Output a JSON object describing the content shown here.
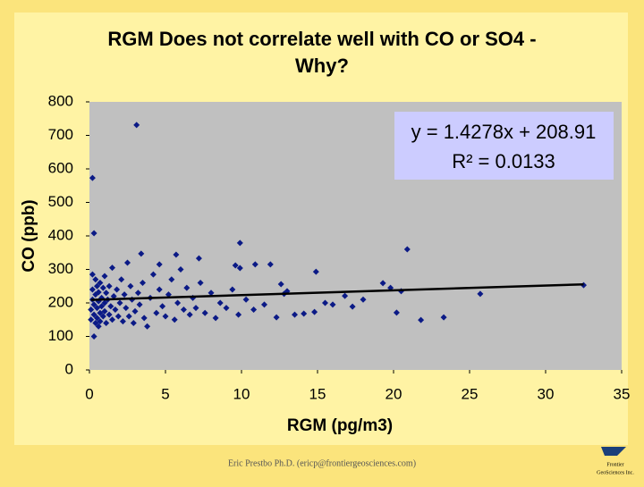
{
  "chart_data": {
    "type": "scatter",
    "title_lines": [
      "RGM Does not correlate well with CO or SO4 -",
      "Why?"
    ],
    "x_label": "RGM (pg/m3)",
    "y_label": "CO (ppb)",
    "color": "#0b1a86",
    "xlim": [
      0,
      35
    ],
    "xticks": [
      0,
      5,
      10,
      15,
      20,
      25,
      30,
      35
    ],
    "ylim": [
      0,
      800
    ],
    "yticks": [
      0,
      100,
      200,
      300,
      400,
      500,
      600,
      700,
      800
    ],
    "trendline": {
      "slope": 1.4278,
      "intercept": 208.91,
      "equation": "y = 1.4278x + 208.91",
      "r_squared": "R² = 0.0133"
    },
    "x": [
      0.2,
      0.3,
      3.1,
      9.9,
      20.9,
      32.5,
      25.7,
      23.3,
      21.8,
      20.2,
      19.3,
      20.5,
      14.9,
      12.6,
      11.9,
      10.9,
      9.6,
      9.9,
      7.2,
      5.7,
      3.4,
      4.6,
      12.8,
      12.3,
      14.1,
      14.8,
      15.5,
      16.0,
      16.8,
      17.3,
      0.1,
      0.1,
      0.2,
      0.2,
      0.2,
      0.3,
      0.3,
      0.3,
      0.4,
      0.4,
      0.4,
      0.5,
      0.5,
      0.5,
      0.6,
      0.6,
      0.6,
      0.7,
      0.7,
      0.7,
      0.8,
      0.8,
      0.9,
      0.9,
      1.0,
      1.0,
      1.0,
      1.1,
      1.1,
      1.2,
      1.3,
      1.3,
      1.4,
      1.5,
      1.5,
      1.6,
      1.7,
      1.8,
      1.9,
      2.0,
      2.1,
      2.2,
      2.3,
      2.4,
      2.5,
      2.6,
      2.7,
      2.8,
      2.9,
      3.0,
      3.2,
      3.3,
      3.5,
      3.6,
      3.8,
      4.0,
      4.2,
      4.4,
      4.6,
      4.8,
      5.0,
      5.2,
      5.4,
      5.6,
      5.8,
      6.0,
      6.2,
      6.4,
      6.6,
      6.8,
      7.0,
      7.3,
      7.6,
      8.0,
      8.3,
      8.6,
      9.0,
      9.4,
      9.8,
      10.3,
      10.8,
      11.5,
      13.0,
      13.5,
      18.0,
      19.8
    ],
    "y": [
      573,
      408,
      731,
      379,
      360,
      253,
      227,
      157,
      149,
      171,
      259,
      235,
      293,
      256,
      315,
      315,
      312,
      304,
      333,
      344,
      347,
      315,
      227,
      157,
      168,
      173,
      200,
      195,
      221,
      189,
      150,
      180,
      210,
      240,
      285,
      165,
      195,
      100,
      140,
      225,
      270,
      155,
      185,
      250,
      130,
      205,
      232,
      170,
      260,
      145,
      190,
      215,
      160,
      245,
      175,
      200,
      280,
      140,
      230,
      210,
      165,
      250,
      190,
      305,
      150,
      220,
      180,
      240,
      160,
      200,
      270,
      145,
      225,
      185,
      320,
      160,
      250,
      210,
      140,
      175,
      230,
      195,
      260,
      155,
      130,
      215,
      285,
      170,
      240,
      190,
      160,
      225,
      270,
      150,
      200,
      300,
      180,
      245,
      165,
      215,
      185,
      260,
      170,
      230,
      155,
      200,
      185,
      240,
      165,
      210,
      180,
      195,
      235,
      165,
      210,
      245
    ]
  },
  "footer": "Eric Prestbo Ph.D. (ericp@frontiergeosciences.com)",
  "logo_text": [
    "Frontier",
    "GeoSciences Inc."
  ]
}
